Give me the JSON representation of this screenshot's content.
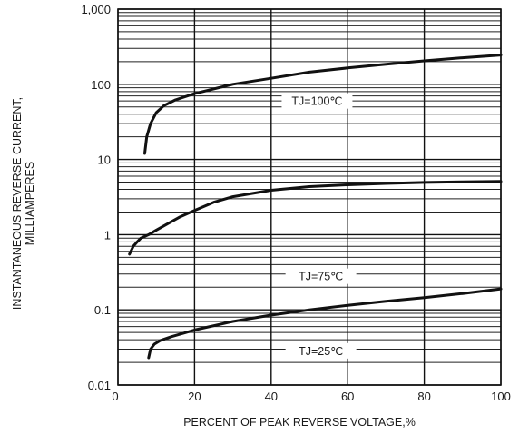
{
  "chart_data": {
    "type": "line",
    "xlabel": "PERCENT OF PEAK REVERSE VOLTAGE,%",
    "ylabel_lines": [
      "INSTANTANEOUS REVERSE CURRENT,",
      "MILLIAMPERES"
    ],
    "xlim": [
      0,
      100
    ],
    "ylim": [
      0.01,
      1000
    ],
    "y_scale": "log",
    "grid": true,
    "x_ticks": [
      {
        "value": 0,
        "label": "0"
      },
      {
        "value": 20,
        "label": "20"
      },
      {
        "value": 40,
        "label": "40"
      },
      {
        "value": 60,
        "label": "60"
      },
      {
        "value": 80,
        "label": "80"
      },
      {
        "value": 100,
        "label": "100"
      }
    ],
    "y_ticks": [
      {
        "value": 0.01,
        "label": "0.01"
      },
      {
        "value": 0.1,
        "label": "0.1"
      },
      {
        "value": 1,
        "label": "1"
      },
      {
        "value": 10,
        "label": "10"
      },
      {
        "value": 100,
        "label": "100"
      },
      {
        "value": 1000,
        "label": "1,000"
      }
    ],
    "series": [
      {
        "name": "TJ=100℃",
        "label": {
          "x": 52,
          "y": 60
        },
        "x": [
          7,
          7.5,
          8.5,
          10,
          12,
          15,
          20,
          30,
          40,
          50,
          60,
          70,
          80,
          90,
          100
        ],
        "y": [
          12,
          20,
          30,
          42,
          52,
          62,
          75,
          100,
          120,
          145,
          165,
          185,
          205,
          225,
          245
        ]
      },
      {
        "name": "TJ=75℃",
        "label": {
          "x": 53,
          "y": 0.28
        },
        "x": [
          3,
          4,
          5,
          6,
          8,
          10,
          13,
          16,
          20,
          25,
          30,
          40,
          50,
          60,
          70,
          80,
          90,
          100
        ],
        "y": [
          0.55,
          0.7,
          0.8,
          0.9,
          1.0,
          1.15,
          1.4,
          1.7,
          2.1,
          2.7,
          3.2,
          3.9,
          4.35,
          4.6,
          4.8,
          4.95,
          5.05,
          5.1
        ]
      },
      {
        "name": "TJ=25℃",
        "label": {
          "x": 53,
          "y": 0.0285
        },
        "x": [
          8,
          8.5,
          9.5,
          11,
          14,
          20,
          30,
          40,
          50,
          60,
          70,
          80,
          90,
          100
        ],
        "y": [
          0.023,
          0.03,
          0.035,
          0.039,
          0.044,
          0.054,
          0.07,
          0.085,
          0.1,
          0.115,
          0.13,
          0.145,
          0.165,
          0.19
        ]
      }
    ]
  }
}
